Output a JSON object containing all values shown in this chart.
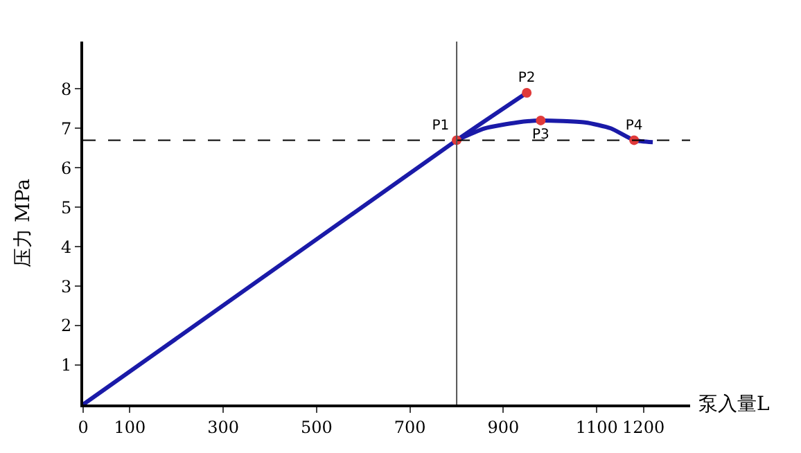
{
  "chart_data": {
    "type": "line",
    "xlabel": "泵入量L",
    "ylabel": "压力 MPa",
    "xlim": [
      0,
      1300
    ],
    "ylim": [
      0,
      9.2
    ],
    "xticks": [
      0,
      100,
      300,
      500,
      700,
      900,
      1100,
      1200
    ],
    "yticks": [
      1,
      2,
      3,
      4,
      5,
      6,
      7,
      8
    ],
    "series": [
      {
        "color": "#1a1aa8",
        "x": [
          0,
          800,
          950
        ],
        "values": [
          0,
          6.7,
          7.9
        ]
      },
      {
        "color": "#1a1aa8",
        "x": [
          800,
          860,
          930,
          980,
          1075,
          1130,
          1180,
          1220
        ],
        "values": [
          6.7,
          7.0,
          7.15,
          7.2,
          7.15,
          7.0,
          6.7,
          6.65
        ]
      },
      {
        "type": "scatter",
        "marker": "circle",
        "color": "#e03a3a",
        "x": [
          800,
          950,
          980,
          1180
        ],
        "values": [
          6.7,
          7.9,
          7.2,
          6.7
        ],
        "value_labels": [
          "P1",
          "P2",
          "P3",
          "P4"
        ]
      }
    ],
    "ref_lines": [
      {
        "axis": "y",
        "value": 6.7,
        "line_style": "dashed",
        "color": "#000000"
      },
      {
        "axis": "x",
        "value": 800,
        "line_style": "solid",
        "color": "#555555"
      }
    ],
    "grid": false
  }
}
